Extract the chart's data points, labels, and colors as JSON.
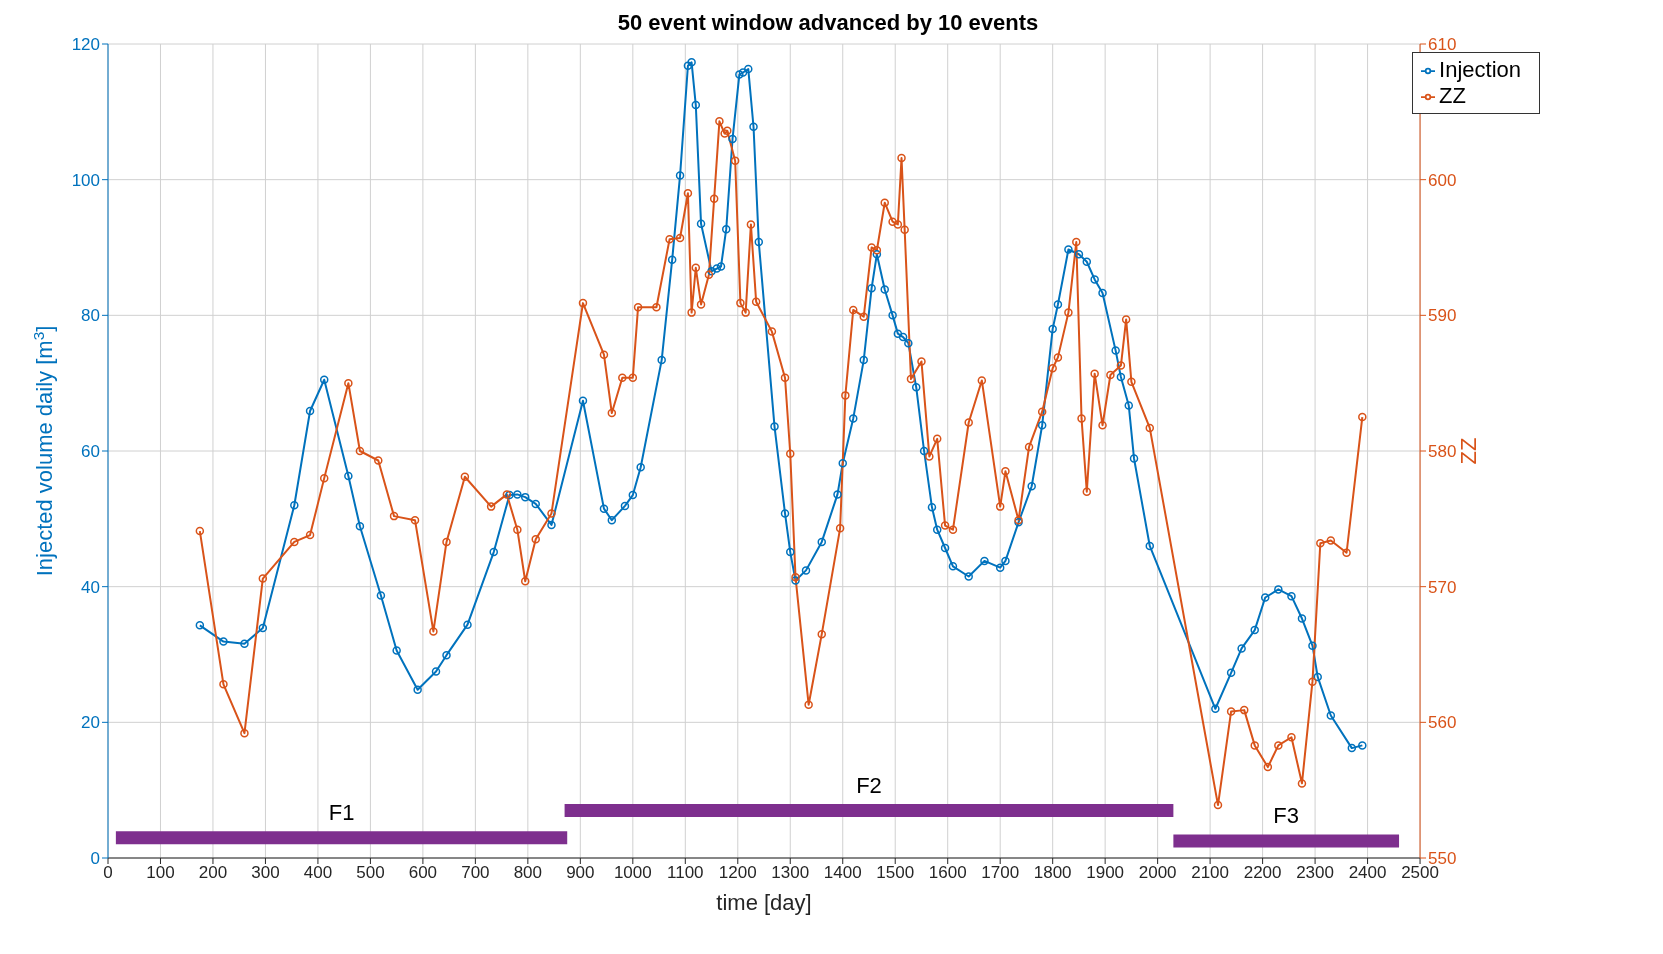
{
  "chart_data": {
    "type": "line",
    "title": "50 event window advanced by 10 events",
    "xlabel": "time [day]",
    "ylabel": "Injected volume daily [m$^{3}$]",
    "y2label": "ZZ",
    "xlim": [
      0,
      2500
    ],
    "xticks": [
      0,
      100,
      200,
      300,
      400,
      500,
      600,
      700,
      800,
      900,
      1000,
      1100,
      1200,
      1300,
      1400,
      1500,
      1600,
      1700,
      1800,
      1900,
      2000,
      2100,
      2200,
      2300,
      2400,
      2500
    ],
    "ylim": [
      0,
      120
    ],
    "yticks": [
      0,
      20,
      40,
      60,
      80,
      100,
      120
    ],
    "y2lim": [
      550,
      610
    ],
    "y2ticks": [
      550,
      560,
      570,
      580,
      590,
      600,
      610
    ],
    "grid": true,
    "legend": "top right",
    "marker": "circle",
    "line_style": "solid",
    "series": [
      {
        "name": "Injection",
        "color": "#0072bd",
        "x": [
          175,
          220,
          260,
          295,
          355,
          385,
          412,
          458,
          480,
          520,
          550,
          590,
          625,
          645,
          685,
          735,
          765,
          780,
          795,
          815,
          845,
          905,
          945,
          960,
          985,
          1000,
          1015,
          1055,
          1075,
          1090,
          1105,
          1112,
          1120,
          1130,
          1150,
          1160,
          1168,
          1178,
          1190,
          1203,
          1210,
          1220,
          1230,
          1240,
          1270,
          1290,
          1300,
          1310,
          1330,
          1360,
          1390,
          1400,
          1420,
          1440,
          1455,
          1465,
          1480,
          1495,
          1505,
          1515,
          1525,
          1540,
          1555,
          1570,
          1580,
          1595,
          1610,
          1640,
          1670,
          1700,
          1710,
          1735,
          1760,
          1780,
          1800,
          1810,
          1830,
          1850,
          1865,
          1880,
          1895,
          1920,
          1930,
          1945,
          1955,
          1985,
          2110,
          2140,
          2160,
          2185,
          2205,
          2230,
          2255,
          2275,
          2295,
          2305,
          2330,
          2370,
          2390
        ],
        "values": [
          34.3,
          31.9,
          31.6,
          33.9,
          52,
          65.9,
          70.5,
          56.3,
          48.9,
          38.7,
          30.6,
          24.8,
          27.5,
          29.9,
          34.4,
          45.1,
          53.5,
          53.6,
          53.2,
          52.2,
          49.1,
          67.4,
          51.5,
          49.8,
          51.9,
          53.5,
          57.6,
          73.4,
          88.2,
          100.6,
          116.8,
          117.3,
          111,
          93.5,
          86.5,
          86.9,
          87.2,
          92.7,
          106,
          115.5,
          115.8,
          116.3,
          107.8,
          90.8,
          63.6,
          50.8,
          45.1,
          40.9,
          42.4,
          46.6,
          53.6,
          58.2,
          64.8,
          73.4,
          84,
          89,
          83.8,
          80,
          77.3,
          76.8,
          75.9,
          69.4,
          60,
          51.7,
          48.4,
          45.7,
          43,
          41.5,
          43.8,
          42.8,
          43.8,
          49.5,
          54.8,
          63.8,
          78,
          81.6,
          89.7,
          89,
          87.9,
          85.3,
          83.3,
          74.8,
          70.9,
          66.7,
          58.9,
          46,
          22,
          27.3,
          30.9,
          33.6,
          38.4,
          39.6,
          38.6,
          35.3,
          31.3,
          26.7,
          21,
          16.2,
          16.6
        ]
      },
      {
        "name": "ZZ",
        "color": "#d95319",
        "axis": "y2",
        "x": [
          175,
          220,
          260,
          295,
          355,
          385,
          412,
          458,
          480,
          515,
          545,
          585,
          620,
          645,
          680,
          730,
          760,
          780,
          795,
          815,
          845,
          905,
          945,
          960,
          980,
          1000,
          1010,
          1045,
          1070,
          1090,
          1105,
          1112,
          1120,
          1130,
          1145,
          1155,
          1165,
          1175,
          1180,
          1195,
          1205,
          1215,
          1225,
          1235,
          1265,
          1290,
          1300,
          1310,
          1335,
          1360,
          1395,
          1405,
          1420,
          1440,
          1455,
          1465,
          1480,
          1495,
          1505,
          1512,
          1518,
          1530,
          1550,
          1565,
          1580,
          1595,
          1610,
          1640,
          1665,
          1700,
          1710,
          1735,
          1755,
          1780,
          1800,
          1810,
          1830,
          1845,
          1855,
          1865,
          1880,
          1895,
          1910,
          1930,
          1940,
          1950,
          1985,
          2115,
          2140,
          2165,
          2185,
          2210,
          2230,
          2255,
          2275,
          2295,
          2310,
          2330,
          2360,
          2390
        ],
        "values": [
          574.1,
          562.8,
          559.2,
          570.6,
          573.3,
          573.8,
          578,
          585,
          580,
          579.3,
          575.2,
          574.9,
          566.7,
          573.3,
          578.1,
          575.9,
          576.8,
          574.2,
          570.4,
          573.5,
          575.4,
          590.9,
          587.1,
          582.8,
          585.4,
          585.4,
          590.6,
          590.6,
          595.6,
          595.7,
          599,
          590.2,
          593.5,
          590.8,
          593,
          598.6,
          604.3,
          603.4,
          603.6,
          601.4,
          590.9,
          590.2,
          596.7,
          591,
          588.8,
          585.4,
          579.8,
          570.7,
          561.3,
          566.5,
          574.3,
          584.1,
          590.4,
          589.9,
          595,
          594.8,
          598.3,
          596.9,
          596.7,
          601.6,
          596.3,
          585.3,
          586.6,
          579.6,
          580.9,
          574.5,
          574.2,
          582.1,
          585.2,
          575.9,
          578.5,
          574.9,
          580.3,
          582.9,
          586.1,
          586.9,
          590.2,
          595.4,
          582.4,
          577,
          585.7,
          581.9,
          585.6,
          586.3,
          589.7,
          585.1,
          581.7,
          553.9,
          560.8,
          560.9,
          558.3,
          556.7,
          558.3,
          558.9,
          555.5,
          563,
          573.2,
          573.4,
          572.5,
          582.5
        ]
      },
      {
        "name": "F1",
        "color": "#7e2f8e",
        "marker": "none",
        "x": [
          15,
          875
        ],
        "values": [
          3,
          3
        ]
      },
      {
        "name": "F2",
        "color": "#7e2f8e",
        "marker": "none",
        "x": [
          870,
          2030
        ],
        "values": [
          7,
          7
        ]
      },
      {
        "name": "F3",
        "color": "#7e2f8e",
        "marker": "none",
        "x": [
          2030,
          2460
        ],
        "values": [
          2.5,
          2.5
        ]
      }
    ]
  }
}
